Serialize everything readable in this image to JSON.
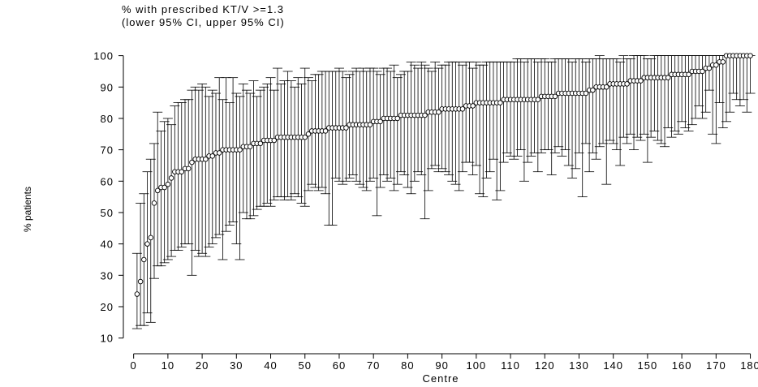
{
  "chart_data": {
    "type": "scatter",
    "title": "% with prescribed KT/V >=1.3",
    "subtitle": "(lower 95% CI, upper 95% CI)",
    "xlabel": "Centre",
    "ylabel": "% patients",
    "xlim": [
      -3,
      182
    ],
    "ylim": [
      5,
      103
    ],
    "xticks": [
      0,
      10,
      20,
      30,
      40,
      50,
      60,
      70,
      80,
      90,
      100,
      110,
      120,
      130,
      140,
      150,
      160,
      170,
      180
    ],
    "yticks": [
      10,
      20,
      30,
      40,
      50,
      60,
      70,
      80,
      90,
      100
    ],
    "grid": false,
    "legend": "none",
    "series": [
      {
        "x": [
          1,
          2,
          3,
          4,
          5,
          6,
          7,
          8,
          9,
          10,
          11,
          12,
          13,
          14,
          15,
          16,
          17,
          18,
          19,
          20,
          21,
          22,
          23,
          24,
          25,
          26,
          27,
          28,
          29,
          30,
          31,
          32,
          33,
          34,
          35,
          36,
          37,
          38,
          39,
          40,
          41,
          42,
          43,
          44,
          45,
          46,
          47,
          48,
          49,
          50,
          51,
          52,
          53,
          54,
          55,
          56,
          57,
          58,
          59,
          60,
          61,
          62,
          63,
          64,
          65,
          66,
          67,
          68,
          69,
          70,
          71,
          72,
          73,
          74,
          75,
          76,
          77,
          78,
          79,
          80,
          81,
          82,
          83,
          84,
          85,
          86,
          87,
          88,
          89,
          90,
          91,
          92,
          93,
          94,
          95,
          96,
          97,
          98,
          99,
          100,
          101,
          102,
          103,
          104,
          105,
          106,
          107,
          108,
          109,
          110,
          111,
          112,
          113,
          114,
          115,
          116,
          117,
          118,
          119,
          120,
          121,
          122,
          123,
          124,
          125,
          126,
          127,
          128,
          129,
          130,
          131,
          132,
          133,
          134,
          135,
          136,
          137,
          138,
          139,
          140,
          141,
          142,
          143,
          144,
          145,
          146,
          147,
          148,
          149,
          150,
          151,
          152,
          153,
          154,
          155,
          156,
          157,
          158,
          159,
          160,
          161,
          162,
          163,
          164,
          165,
          166,
          167,
          168,
          169,
          170,
          171,
          172,
          173,
          174,
          175,
          176,
          177,
          178,
          179,
          180
        ],
        "y": [
          24,
          28,
          35,
          40,
          42,
          53,
          57,
          58,
          58,
          59,
          61,
          63,
          63,
          63,
          64,
          64,
          66,
          67,
          67,
          67,
          67,
          68,
          68,
          69,
          69,
          70,
          70,
          70,
          70,
          70,
          70,
          71,
          71,
          71,
          72,
          72,
          72,
          73,
          73,
          73,
          73,
          74,
          74,
          74,
          74,
          74,
          74,
          74,
          74,
          74,
          75,
          76,
          76,
          76,
          76,
          76,
          77,
          77,
          77,
          77,
          77,
          77,
          78,
          78,
          78,
          78,
          78,
          78,
          78,
          79,
          79,
          79,
          80,
          80,
          80,
          80,
          80,
          81,
          81,
          81,
          81,
          81,
          81,
          81,
          81,
          82,
          82,
          82,
          82,
          83,
          83,
          83,
          83,
          83,
          83,
          83,
          84,
          84,
          84,
          85,
          85,
          85,
          85,
          85,
          85,
          85,
          85,
          86,
          86,
          86,
          86,
          86,
          86,
          86,
          86,
          86,
          86,
          86,
          87,
          87,
          87,
          87,
          87,
          88,
          88,
          88,
          88,
          88,
          88,
          88,
          88,
          88,
          89,
          89,
          90,
          90,
          90,
          90,
          91,
          91,
          91,
          91,
          91,
          91,
          92,
          92,
          92,
          92,
          93,
          93,
          93,
          93,
          93,
          93,
          93,
          93,
          94,
          94,
          94,
          94,
          94,
          94,
          95,
          95,
          95,
          95,
          96,
          96,
          97,
          97,
          98,
          98,
          100,
          100,
          100,
          100,
          100,
          100,
          100,
          100
        ],
        "lower": [
          13,
          14,
          14,
          18,
          15,
          29,
          33,
          33,
          34,
          35,
          36,
          38,
          38,
          39,
          40,
          40,
          30,
          38,
          36,
          37,
          36,
          39,
          40,
          42,
          43,
          35,
          44,
          46,
          47,
          40,
          35,
          50,
          48,
          48,
          49,
          51,
          52,
          52,
          53,
          52,
          54,
          55,
          55,
          54,
          55,
          54,
          56,
          55,
          53,
          52,
          57,
          59,
          58,
          57,
          58,
          56,
          46,
          46,
          61,
          60,
          59,
          60,
          61,
          62,
          60,
          59,
          58,
          57,
          60,
          61,
          49,
          58,
          62,
          60,
          61,
          57,
          59,
          63,
          62,
          58,
          56,
          60,
          63,
          62,
          48,
          57,
          64,
          65,
          63,
          64,
          63,
          62,
          60,
          59,
          57,
          63,
          66,
          66,
          62,
          65,
          56,
          55,
          61,
          63,
          67,
          54,
          57,
          66,
          69,
          68,
          67,
          68,
          70,
          60,
          66,
          68,
          69,
          63,
          69,
          70,
          70,
          62,
          69,
          71,
          68,
          70,
          65,
          61,
          64,
          69,
          55,
          72,
          63,
          69,
          67,
          71,
          72,
          59,
          73,
          72,
          70,
          65,
          74,
          72,
          75,
          70,
          74,
          73,
          75,
          66,
          74,
          76,
          73,
          72,
          71,
          77,
          74,
          76,
          75,
          79,
          77,
          76,
          78,
          80,
          84,
          80,
          82,
          89,
          75,
          72,
          85,
          77,
          79,
          82,
          88,
          86,
          84,
          86,
          82,
          88
        ],
        "upper": [
          37,
          53,
          56,
          63,
          67,
          72,
          82,
          76,
          79,
          80,
          78,
          84,
          85,
          85,
          86,
          86,
          89,
          90,
          89,
          91,
          90,
          87,
          89,
          88,
          93,
          86,
          93,
          85,
          93,
          88,
          87,
          91,
          89,
          88,
          92,
          87,
          89,
          90,
          91,
          93,
          89,
          96,
          91,
          92,
          95,
          92,
          90,
          93,
          91,
          96,
          93,
          92,
          94,
          94,
          95,
          95,
          95,
          95,
          95,
          96,
          95,
          93,
          94,
          95,
          96,
          95,
          96,
          95,
          96,
          96,
          95,
          94,
          96,
          96,
          95,
          97,
          93,
          94,
          95,
          95,
          98,
          97,
          96,
          98,
          97,
          96,
          95,
          98,
          96,
          97,
          97,
          98,
          98,
          98,
          98,
          97,
          98,
          98,
          96,
          98,
          97,
          97,
          98,
          98,
          98,
          98,
          98,
          98,
          98,
          98,
          98,
          99,
          99,
          98,
          99,
          99,
          99,
          98,
          99,
          99,
          98,
          98,
          99,
          99,
          99,
          99,
          99,
          98,
          99,
          99,
          99,
          98,
          99,
          99,
          99,
          100,
          99,
          99,
          99,
          99,
          99,
          98,
          100,
          99,
          99,
          100,
          100,
          100,
          100,
          99,
          99,
          100,
          100,
          100,
          100,
          100,
          100,
          100,
          100,
          100,
          100,
          100,
          100,
          100,
          100,
          100,
          100,
          100,
          100,
          100,
          100,
          100,
          100,
          100,
          100,
          100,
          100,
          100,
          100,
          100
        ]
      }
    ]
  }
}
